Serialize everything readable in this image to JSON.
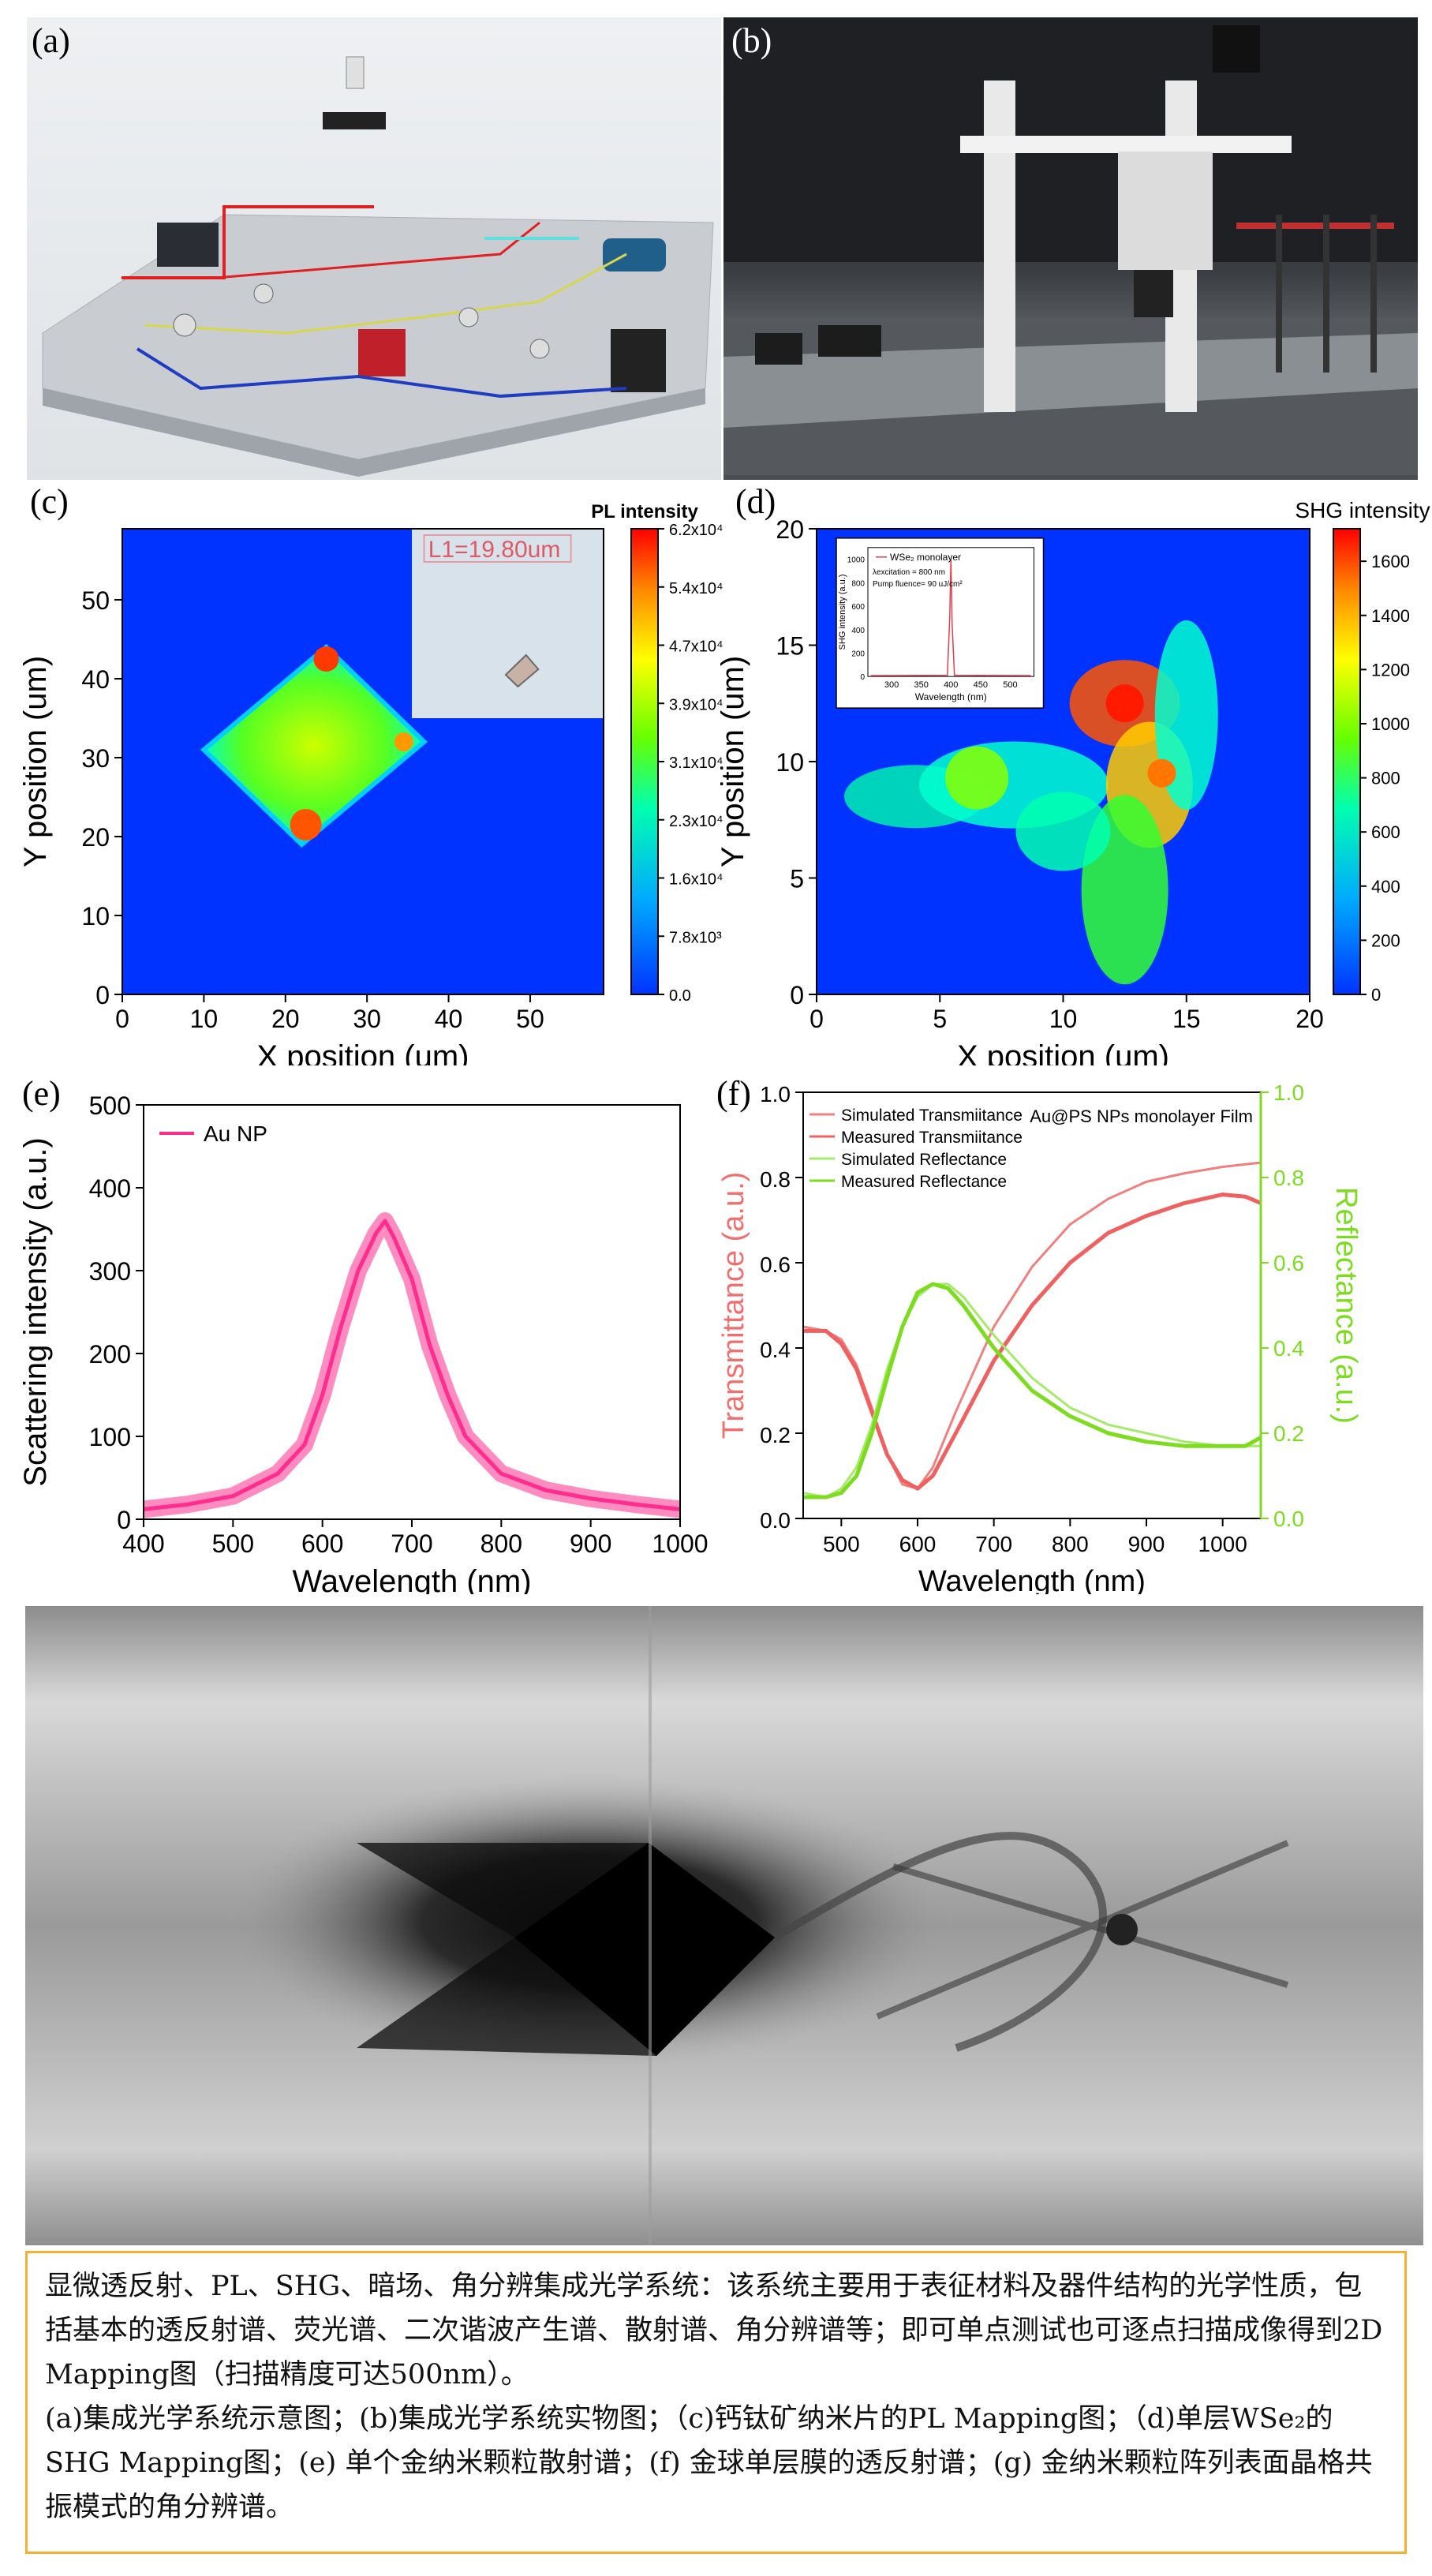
{
  "panels": {
    "a": {
      "label": "(a)"
    },
    "b": {
      "label": "(b)"
    },
    "c": {
      "label": "(c)",
      "inset_label": "L1=19.80um"
    },
    "d": {
      "label": "(d)"
    },
    "e": {
      "label": "(e)"
    },
    "f": {
      "label": "(f)"
    }
  },
  "chart_data": [
    {
      "id": "c",
      "type": "heatmap",
      "title": "PL intensity",
      "xlabel": "X position (um)",
      "ylabel": "Y position (um)",
      "xlim": [
        0,
        59
      ],
      "ylim": [
        0,
        59
      ],
      "xticks": [
        "0",
        "10",
        "20",
        "30",
        "40",
        "50"
      ],
      "yticks": [
        "0",
        "10",
        "20",
        "30",
        "40",
        "50"
      ],
      "colorbar_ticks": [
        "6.2x10⁴",
        "5.4x10⁴",
        "4.7x10⁴",
        "3.9x10⁴",
        "3.1x10⁴",
        "2.3x10⁴",
        "1.6x10⁴",
        "7.8x10³",
        "0.0"
      ],
      "colorbar_range": [
        0,
        62000
      ]
    },
    {
      "id": "d",
      "type": "heatmap",
      "title": "SHG intensity",
      "xlabel": "X position (um)",
      "ylabel": "Y position (um)",
      "xlim": [
        0,
        20
      ],
      "ylim": [
        0,
        20
      ],
      "xticks": [
        "0",
        "5",
        "10",
        "15",
        "20"
      ],
      "yticks": [
        "0",
        "5",
        "10",
        "15",
        "20"
      ],
      "colorbar_ticks": [
        "1600",
        "1400",
        "1200",
        "1000",
        "800",
        "600",
        "400",
        "200",
        "0"
      ],
      "colorbar_range": [
        0,
        1720
      ],
      "inset": {
        "type": "line",
        "legend": "WSe₂ monolayer",
        "notes": [
          "λexcitation = 800 nm",
          "Pump fluence= 90 uJ/cm²"
        ],
        "xlabel": "Wavelength (nm)",
        "ylabel": "SHG intensity (a.u.)",
        "xticks": [
          "300",
          "350",
          "400",
          "450",
          "500"
        ],
        "yticks": [
          "0",
          "200",
          "400",
          "600",
          "800",
          "1000"
        ],
        "peak_x": 400,
        "peak_y": 1000
      }
    },
    {
      "id": "e",
      "type": "line",
      "xlabel": "Wavelength (nm)",
      "ylabel": "Scattering intensity (a.u.)",
      "xlim": [
        400,
        1000
      ],
      "ylim": [
        0,
        500
      ],
      "xticks": [
        "400",
        "500",
        "600",
        "700",
        "800",
        "900",
        "1000"
      ],
      "yticks": [
        "0",
        "100",
        "200",
        "300",
        "400",
        "500"
      ],
      "series": [
        {
          "name": "Au NP",
          "color": "#ff2d8e",
          "x": [
            400,
            450,
            500,
            550,
            580,
            600,
            620,
            640,
            660,
            670,
            680,
            700,
            720,
            740,
            760,
            800,
            850,
            900,
            950,
            1000
          ],
          "y": [
            12,
            18,
            28,
            55,
            90,
            150,
            230,
            300,
            345,
            360,
            340,
            290,
            210,
            150,
            100,
            55,
            35,
            25,
            18,
            12
          ]
        }
      ]
    },
    {
      "id": "f",
      "type": "line",
      "title": "Au@PS NPs monolayer Film",
      "xlabel": "Wavelength (nm)",
      "ylabel": "Transmittance (a.u.)",
      "y2label": "Reflectance (a.u.)",
      "xlim": [
        450,
        1050
      ],
      "ylim": [
        0,
        1.0
      ],
      "y2lim": [
        0,
        1.0
      ],
      "xticks": [
        "500",
        "600",
        "700",
        "800",
        "900",
        "1000"
      ],
      "yticks": [
        "0.0",
        "0.2",
        "0.4",
        "0.6",
        "0.8",
        "1.0"
      ],
      "legend_position": "top-left",
      "series": [
        {
          "name": "Simulated Transmiitance",
          "color": "#f08080",
          "x": [
            450,
            480,
            500,
            520,
            540,
            560,
            580,
            600,
            620,
            650,
            700,
            750,
            800,
            850,
            900,
            950,
            1000,
            1050
          ],
          "y": [
            0.45,
            0.44,
            0.42,
            0.36,
            0.26,
            0.15,
            0.08,
            0.07,
            0.12,
            0.25,
            0.45,
            0.59,
            0.69,
            0.75,
            0.79,
            0.81,
            0.825,
            0.835
          ]
        },
        {
          "name": "Measured Transmiitance",
          "color": "#f06060",
          "x": [
            450,
            480,
            500,
            520,
            540,
            560,
            580,
            600,
            620,
            650,
            700,
            750,
            800,
            850,
            900,
            950,
            1000,
            1030,
            1050
          ],
          "y": [
            0.44,
            0.44,
            0.41,
            0.35,
            0.25,
            0.15,
            0.09,
            0.07,
            0.1,
            0.2,
            0.37,
            0.5,
            0.6,
            0.67,
            0.71,
            0.74,
            0.76,
            0.755,
            0.74
          ]
        },
        {
          "name": "Simulated Reflectance",
          "color": "#a6ea6a",
          "x": [
            450,
            480,
            500,
            520,
            540,
            560,
            580,
            600,
            620,
            640,
            660,
            700,
            750,
            800,
            850,
            900,
            950,
            1000,
            1050
          ],
          "y": [
            0.06,
            0.05,
            0.07,
            0.12,
            0.22,
            0.35,
            0.45,
            0.52,
            0.55,
            0.55,
            0.52,
            0.43,
            0.33,
            0.26,
            0.22,
            0.2,
            0.18,
            0.17,
            0.17
          ]
        },
        {
          "name": "Measured Reflectance",
          "color": "#7ddc1f",
          "x": [
            450,
            480,
            500,
            520,
            540,
            560,
            580,
            600,
            620,
            640,
            660,
            700,
            750,
            800,
            850,
            900,
            950,
            1000,
            1030,
            1050
          ],
          "y": [
            0.05,
            0.05,
            0.06,
            0.1,
            0.2,
            0.33,
            0.45,
            0.53,
            0.55,
            0.54,
            0.5,
            0.4,
            0.3,
            0.24,
            0.2,
            0.18,
            0.17,
            0.17,
            0.17,
            0.19
          ]
        }
      ]
    }
  ],
  "caption": {
    "line1": "显微透反射、PL、SHG、暗场、角分辨集成光学系统：该系统主要用于表征材料及器件结构的光学性质，包括基本的透反射谱、荧光谱、二次谐波产生谱、散射谱、角分辨谱等；即可单点测试也可逐点扫描成像得到2D Mapping图（扫描精度可达500nm）。",
    "line2": "(a)集成光学系统示意图；(b)集成光学系统实物图；（c)钙钛矿纳米片的PL Mapping图；（d)单层WSe₂的SHG Mapping图；(e) 单个金纳米颗粒散射谱；(f) 金球单层膜的透反射谱；(g) 金纳米颗粒阵列表面晶格共振模式的角分辨谱。"
  },
  "colors": {
    "caption_border": "#f2b134",
    "jet_low": "#0033ff",
    "jet_high": "#ff0000"
  }
}
